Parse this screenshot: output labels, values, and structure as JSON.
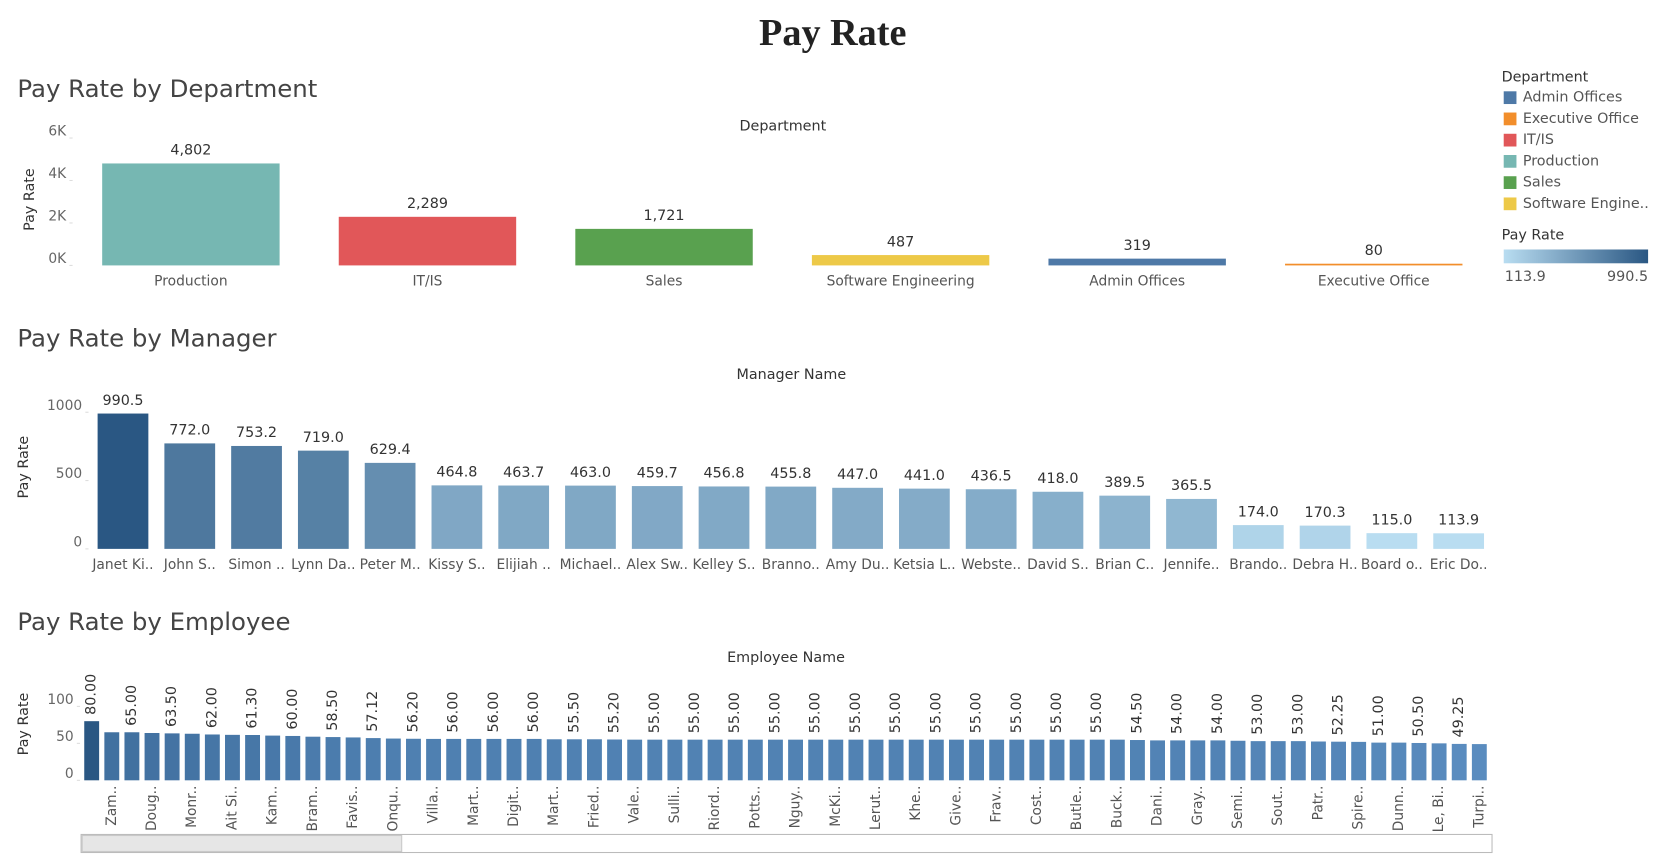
{
  "title": "Pay Rate",
  "color_scale": {
    "title": "Pay Rate",
    "min": 113.9,
    "max": 990.5,
    "colors": [
      "#b9ddf1",
      "#2a5783"
    ]
  },
  "legend": {
    "title": "Department",
    "names": [
      "Admin Offices",
      "Executive Office",
      "IT/IS",
      "Production",
      "Sales",
      "Software Engine.."
    ],
    "colors": [
      "#4e79a7",
      "#f28e2b",
      "#e15759",
      "#76b7b2",
      "#59a14f",
      "#edc948"
    ]
  },
  "chart_data": [
    {
      "type": "bar",
      "title": "Pay Rate by Department",
      "x_label": "Department",
      "y_label": "Pay Rate",
      "categories": [
        "Production",
        "IT/IS",
        "Sales",
        "Software Engineering",
        "Admin Offices",
        "Executive Office"
      ],
      "values": [
        4802,
        2289,
        1721,
        487,
        319,
        80
      ],
      "value_labels": [
        "4,802",
        "2,289",
        "1,721",
        "487",
        "319",
        "80"
      ],
      "colors": [
        "#76b7b2",
        "#e15759",
        "#59a14f",
        "#edc948",
        "#4e79a7",
        "#f28e2b"
      ],
      "ylim": [
        0,
        6000
      ],
      "yticks": [
        {
          "value": 0,
          "label": "0K"
        },
        {
          "value": 2000,
          "label": "2K"
        },
        {
          "value": 4000,
          "label": "4K"
        },
        {
          "value": 6000,
          "label": "6K"
        }
      ]
    },
    {
      "type": "bar",
      "title": "Pay Rate by Manager",
      "x_label": "Manager Name",
      "y_label": "Pay Rate",
      "categories": [
        "Janet Ki..",
        "John S..",
        "Simon ..",
        "Lynn Da..",
        "Peter M..",
        "Kissy S..",
        "Elijiah ..",
        "Michael..",
        "Alex Sw..",
        "Kelley S..",
        "Branno..",
        "Amy Du..",
        "Ketsia L..",
        "Webste..",
        "David S..",
        "Brian C..",
        "Jennife..",
        "Brando..",
        "Debra H..",
        "Board o..",
        "Eric Do.."
      ],
      "values": [
        990.5,
        772.0,
        753.2,
        719.0,
        629.4,
        464.8,
        463.7,
        463.0,
        459.7,
        456.8,
        455.8,
        447.0,
        441.0,
        436.5,
        418.0,
        389.5,
        365.5,
        174.0,
        170.3,
        115.0,
        113.9
      ],
      "value_labels": [
        "990.5",
        "772.0",
        "753.2",
        "719.0",
        "629.4",
        "464.8",
        "463.7",
        "463.0",
        "459.7",
        "456.8",
        "455.8",
        "447.0",
        "441.0",
        "436.5",
        "418.0",
        "389.5",
        "365.5",
        "174.0",
        "170.3",
        "115.0",
        "113.9"
      ],
      "color_by": "color_scale",
      "ylim": [
        0,
        1150
      ],
      "yticks": [
        0,
        500,
        1000
      ]
    },
    {
      "type": "bar",
      "title": "Pay Rate by Employee",
      "x_label": "Employee Name",
      "y_label": "Pay Rate",
      "categories": [
        null,
        "Zam..",
        null,
        "Doug..",
        null,
        "Monr..",
        null,
        "Ait Si..",
        null,
        "Kam..",
        null,
        "Bram..",
        null,
        "Favis..",
        null,
        "Onqu..",
        null,
        "Villa..",
        null,
        "Mart..",
        null,
        "Digit..",
        null,
        "Mart..",
        null,
        "Fried..",
        null,
        "Vale..",
        null,
        "Sulli..",
        null,
        "Riord..",
        null,
        "Potts..",
        null,
        "Nguy..",
        null,
        "McKi..",
        null,
        "Lerut..",
        null,
        "Khe..",
        null,
        "Give..",
        null,
        "Frav..",
        null,
        "Cost..",
        null,
        "Butle..",
        null,
        "Buck..",
        null,
        "Dani..",
        null,
        "Gray..",
        null,
        "Semi..",
        null,
        "Sout..",
        null,
        "Patr..",
        null,
        "Spire..",
        null,
        "Dunn..",
        null,
        "Le, Bi..",
        null,
        "Turpi.."
      ],
      "values": [
        80,
        65,
        65,
        64,
        63.5,
        63,
        62,
        61.5,
        61.3,
        60.5,
        60,
        59,
        58.5,
        58,
        57.12,
        56.5,
        56.2,
        56,
        56,
        56,
        56,
        56,
        56,
        55.5,
        55.5,
        55.5,
        55.2,
        55,
        55,
        55,
        55,
        55,
        55,
        55,
        55,
        55,
        55,
        55,
        55,
        55,
        55,
        55,
        55,
        55,
        55,
        55,
        55,
        55,
        55,
        55,
        55,
        55,
        54.5,
        54,
        54,
        54,
        54,
        53.5,
        53,
        53,
        53,
        52.5,
        52.25,
        52,
        51,
        51,
        50.5,
        50,
        49.25,
        49
      ],
      "value_labels": [
        "80.00",
        null,
        "65.00",
        null,
        "63.50",
        null,
        "62.00",
        null,
        "61.30",
        null,
        "60.00",
        null,
        "58.50",
        null,
        "57.12",
        null,
        "56.20",
        null,
        "56.00",
        null,
        "56.00",
        null,
        "56.00",
        null,
        "55.50",
        null,
        "55.20",
        null,
        "55.00",
        null,
        "55.00",
        null,
        "55.00",
        null,
        "55.00",
        null,
        "55.00",
        null,
        "55.00",
        null,
        "55.00",
        null,
        "55.00",
        null,
        "55.00",
        null,
        "55.00",
        null,
        "55.00",
        null,
        "55.00",
        null,
        "54.50",
        null,
        "54.00",
        null,
        "54.00",
        null,
        "53.00",
        null,
        "53.00",
        null,
        "52.25",
        null,
        "51.00",
        null,
        "50.50",
        null,
        "49.25",
        null
      ],
      "color_range": [
        "#5a8cbf",
        "#2a5783"
      ],
      "ylim": [
        0,
        135
      ],
      "yticks": [
        0,
        50,
        100
      ]
    }
  ]
}
